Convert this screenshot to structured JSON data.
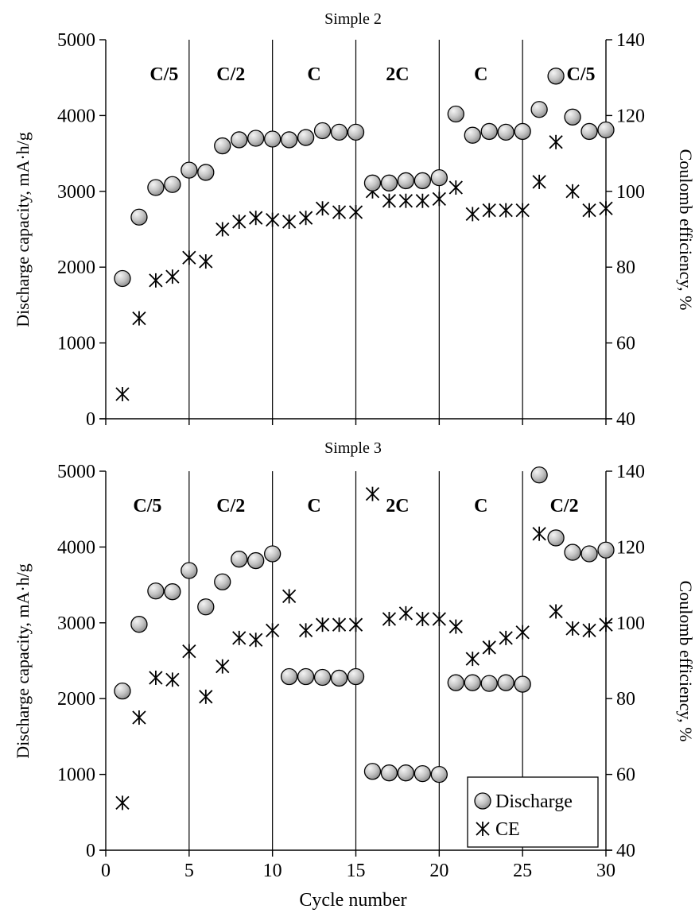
{
  "figure": {
    "xlabel": "Cycle number",
    "legend": {
      "discharge_label": "Discharge",
      "ce_label": "CE",
      "placement": "bottom-right of lower panel"
    }
  },
  "chart_data": [
    {
      "type": "scatter",
      "title": "Simple 2",
      "xlabel": "",
      "ylabel_left": "Discharge capacity, mA·h/g",
      "ylabel_right": "Coulomb efficiency, %",
      "xlim": [
        0,
        30
      ],
      "ylim_left": [
        0,
        5000
      ],
      "ylim_right": [
        40,
        140
      ],
      "xticks": [
        0,
        5,
        10,
        15,
        20,
        25,
        30
      ],
      "yticks_left": [
        0,
        1000,
        2000,
        3000,
        4000,
        5000
      ],
      "yticks_right": [
        40,
        60,
        80,
        100,
        120,
        140
      ],
      "x_tick_labels_shown": false,
      "grid": false,
      "region_dividers": [
        5,
        10,
        15,
        20,
        25
      ],
      "regions": [
        {
          "label": "C/5",
          "x": 3.5
        },
        {
          "label": "C/2",
          "x": 7.5
        },
        {
          "label": "C",
          "x": 12.5
        },
        {
          "label": "2C",
          "x": 17.5
        },
        {
          "label": "C",
          "x": 22.5
        },
        {
          "label": "C/5",
          "x": 28.5
        }
      ],
      "series": [
        {
          "name": "Discharge",
          "axis": "left",
          "marker": "circle",
          "x": [
            1,
            2,
            3,
            4,
            5,
            6,
            7,
            8,
            9,
            10,
            11,
            12,
            13,
            14,
            15,
            16,
            17,
            18,
            19,
            20,
            21,
            22,
            23,
            24,
            25,
            26,
            27,
            28,
            29,
            30
          ],
          "values": [
            1850,
            2660,
            3050,
            3090,
            3280,
            3250,
            3600,
            3680,
            3700,
            3690,
            3680,
            3710,
            3800,
            3780,
            3780,
            3110,
            3110,
            3140,
            3140,
            3180,
            4020,
            3740,
            3790,
            3780,
            3790,
            4080,
            4520,
            3980,
            3790,
            3810
          ]
        },
        {
          "name": "CE",
          "axis": "right",
          "marker": "star",
          "x": [
            1,
            2,
            3,
            4,
            5,
            6,
            7,
            8,
            9,
            10,
            11,
            12,
            13,
            14,
            15,
            16,
            17,
            18,
            19,
            20,
            21,
            22,
            23,
            24,
            25,
            26,
            27,
            28,
            29,
            30
          ],
          "values": [
            46.5,
            66.5,
            76.5,
            77.5,
            82.5,
            81.5,
            90,
            92,
            93,
            92.5,
            92,
            93,
            95.5,
            94.5,
            94.5,
            100,
            97.5,
            97.5,
            97.5,
            98,
            101,
            94,
            95,
            95,
            95,
            102.5,
            113,
            100,
            95,
            95.5
          ]
        }
      ]
    },
    {
      "type": "scatter",
      "title": "Simple 3",
      "xlabel": "Cycle number",
      "ylabel_left": "Discharge capacity, mA·h/g",
      "ylabel_right": "Coulomb efficiency, %",
      "xlim": [
        0,
        30
      ],
      "ylim_left": [
        0,
        5000
      ],
      "ylim_right": [
        40,
        140
      ],
      "xticks": [
        0,
        5,
        10,
        15,
        20,
        25,
        30
      ],
      "yticks_left": [
        0,
        1000,
        2000,
        3000,
        4000,
        5000
      ],
      "yticks_right": [
        40,
        60,
        80,
        100,
        120,
        140
      ],
      "x_tick_labels_shown": true,
      "grid": false,
      "region_dividers": [
        5,
        10,
        15,
        20,
        25
      ],
      "regions": [
        {
          "label": "C/5",
          "x": 2.5
        },
        {
          "label": "C/2",
          "x": 7.5
        },
        {
          "label": "C",
          "x": 12.5
        },
        {
          "label": "2C",
          "x": 17.5
        },
        {
          "label": "C",
          "x": 22.5
        },
        {
          "label": "C/2",
          "x": 27.5
        }
      ],
      "series": [
        {
          "name": "Discharge",
          "axis": "left",
          "marker": "circle",
          "x": [
            1,
            2,
            3,
            4,
            5,
            6,
            7,
            8,
            9,
            10,
            11,
            12,
            13,
            14,
            15,
            16,
            17,
            18,
            19,
            20,
            21,
            22,
            23,
            24,
            25,
            26,
            27,
            28,
            29,
            30
          ],
          "values": [
            2100,
            2980,
            3420,
            3410,
            3690,
            3210,
            3540,
            3840,
            3820,
            3910,
            2290,
            2290,
            2280,
            2270,
            2290,
            1040,
            1020,
            1020,
            1010,
            1000,
            2210,
            2210,
            2200,
            2210,
            2190,
            4950,
            4120,
            3930,
            3910,
            3960
          ]
        },
        {
          "name": "CE",
          "axis": "right",
          "marker": "star",
          "x": [
            1,
            2,
            3,
            4,
            5,
            6,
            7,
            8,
            9,
            10,
            11,
            12,
            13,
            14,
            15,
            16,
            17,
            18,
            19,
            20,
            21,
            22,
            23,
            24,
            25,
            26,
            27,
            28,
            29,
            30
          ],
          "values": [
            52.5,
            75,
            85.5,
            85,
            92.5,
            80.5,
            88.5,
            96,
            95.5,
            98,
            107,
            98,
            99.5,
            99.5,
            99.5,
            134,
            101,
            102.5,
            101,
            101,
            99,
            90.5,
            93.5,
            96,
            97.5,
            123.5,
            103,
            98.5,
            98,
            99.5
          ]
        }
      ]
    }
  ]
}
